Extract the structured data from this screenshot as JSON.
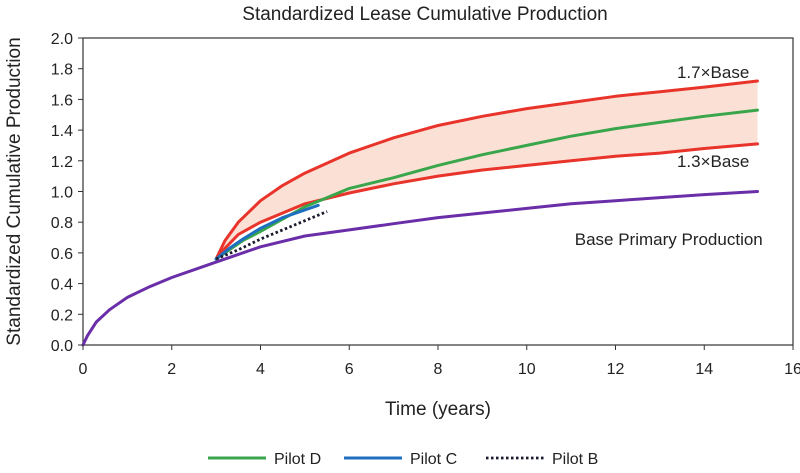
{
  "chart_data": {
    "type": "line",
    "title": "Standardized Lease Cumulative Production",
    "xlabel": "Time (years)",
    "ylabel": "Standardized Cumulative Production",
    "xlim": [
      0,
      16
    ],
    "ylim": [
      0,
      2.0
    ],
    "x_ticks": [
      "0",
      "2",
      "4",
      "6",
      "8",
      "10",
      "12",
      "14",
      "16"
    ],
    "y_ticks": [
      "0.0",
      "0.2",
      "0.4",
      "0.6",
      "0.8",
      "1.0",
      "1.2",
      "1.4",
      "1.6",
      "1.8",
      "2.0"
    ],
    "grid": false,
    "legend_position": "bottom",
    "band": {
      "between": [
        "1.3×Base",
        "1.7×Base"
      ],
      "color": "#fbe0d6"
    },
    "series": [
      {
        "name": "Base Primary Production",
        "color": "#6a2ea8",
        "style": "solid",
        "x": [
          0,
          0.1,
          0.3,
          0.6,
          1,
          1.5,
          2,
          2.5,
          3,
          3.5,
          4,
          5,
          6,
          7,
          8,
          9,
          10,
          11,
          12,
          13,
          14,
          15.2
        ],
        "y": [
          0,
          0.06,
          0.15,
          0.23,
          0.31,
          0.38,
          0.44,
          0.49,
          0.54,
          0.59,
          0.64,
          0.71,
          0.75,
          0.79,
          0.83,
          0.86,
          0.89,
          0.92,
          0.94,
          0.96,
          0.98,
          1.0
        ]
      },
      {
        "name": "1.7×Base",
        "color": "#e8342a",
        "style": "solid",
        "x": [
          3.0,
          3.2,
          3.5,
          4,
          4.5,
          5,
          6,
          7,
          8,
          9,
          10,
          11,
          12,
          13,
          14,
          15.2
        ],
        "y": [
          0.56,
          0.68,
          0.8,
          0.94,
          1.04,
          1.12,
          1.25,
          1.35,
          1.43,
          1.49,
          1.54,
          1.58,
          1.62,
          1.65,
          1.68,
          1.72
        ]
      },
      {
        "name": "1.3×Base",
        "color": "#e8342a",
        "style": "solid",
        "x": [
          3.0,
          3.2,
          3.5,
          4,
          4.5,
          5,
          6,
          7,
          8,
          9,
          10,
          11,
          12,
          13,
          14,
          15.2
        ],
        "y": [
          0.56,
          0.63,
          0.72,
          0.8,
          0.86,
          0.92,
          0.99,
          1.05,
          1.1,
          1.14,
          1.17,
          1.2,
          1.23,
          1.25,
          1.28,
          1.31
        ]
      },
      {
        "name": "Pilot D",
        "color": "#3aa64c",
        "style": "solid",
        "x": [
          3.0,
          3.3,
          3.6,
          4,
          4.5,
          5,
          5.5,
          6,
          7,
          8,
          9,
          10,
          11,
          12,
          13,
          14,
          15.2
        ],
        "y": [
          0.56,
          0.62,
          0.68,
          0.74,
          0.82,
          0.9,
          0.96,
          1.02,
          1.09,
          1.17,
          1.24,
          1.3,
          1.36,
          1.41,
          1.45,
          1.49,
          1.53
        ]
      },
      {
        "name": "Pilot C",
        "color": "#1f6fc0",
        "style": "solid",
        "x": [
          3.0,
          3.3,
          3.6,
          4,
          4.5,
          5,
          5.3
        ],
        "y": [
          0.56,
          0.63,
          0.69,
          0.76,
          0.83,
          0.88,
          0.91
        ]
      },
      {
        "name": "Pilot B",
        "color": "#1a1a2e",
        "style": "dotted",
        "x": [
          3.0,
          3.5,
          4,
          4.5,
          5,
          5.5
        ],
        "y": [
          0.56,
          0.62,
          0.69,
          0.75,
          0.81,
          0.87
        ]
      }
    ],
    "annotations": [
      {
        "text": "1.7×Base",
        "x": 14.2,
        "y": 1.78
      },
      {
        "text": "1.3×Base",
        "x": 14.2,
        "y": 1.2
      },
      {
        "text": "Base Primary Production",
        "x": 13.2,
        "y": 0.69
      }
    ],
    "legend": [
      "Pilot D",
      "Pilot C",
      "Pilot B"
    ]
  }
}
